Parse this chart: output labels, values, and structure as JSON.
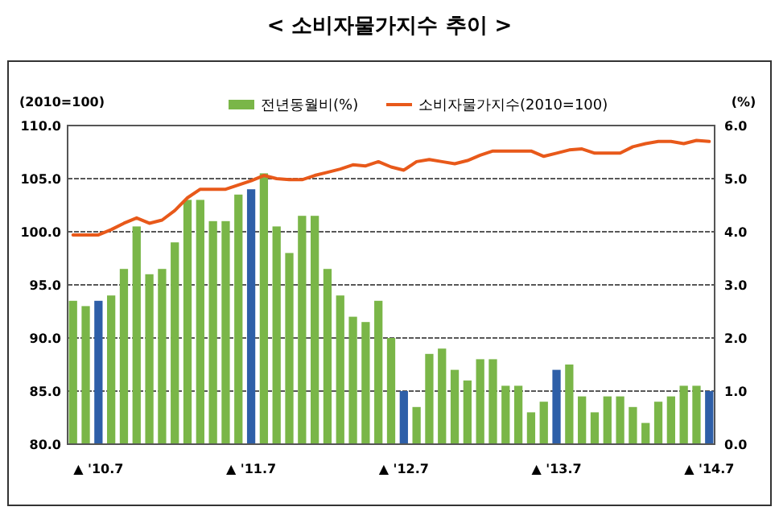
{
  "chart_data": {
    "type": "bar",
    "title": "< 소비자물가지수 추이 >",
    "ylabel": "(2010=100)",
    "y2label": "(%)",
    "categories": [
      null,
      null,
      "▲ '10.7",
      null,
      null,
      null,
      null,
      null,
      null,
      null,
      null,
      null,
      null,
      null,
      "▲ '11.7",
      null,
      null,
      null,
      null,
      null,
      null,
      null,
      null,
      null,
      null,
      null,
      "▲ '12.7",
      null,
      null,
      null,
      null,
      null,
      null,
      null,
      null,
      null,
      null,
      null,
      "▲ '13.7",
      null,
      null,
      null,
      null,
      null,
      null,
      null,
      null,
      null,
      null,
      null,
      "▲ '14.7"
    ],
    "series": [
      {
        "name": "전년동월비(%)",
        "axis": "y2",
        "color": "#7ab648",
        "colors": [
          "#7ab648",
          "#7ab648",
          "#2e5fa8",
          "#7ab648",
          "#7ab648",
          "#7ab648",
          "#7ab648",
          "#7ab648",
          "#7ab648",
          "#7ab648",
          "#7ab648",
          "#7ab648",
          "#7ab648",
          "#7ab648",
          "#2e5fa8",
          "#7ab648",
          "#7ab648",
          "#7ab648",
          "#7ab648",
          "#7ab648",
          "#7ab648",
          "#7ab648",
          "#7ab648",
          "#7ab648",
          "#7ab648",
          "#7ab648",
          "#2e5fa8",
          "#7ab648",
          "#7ab648",
          "#7ab648",
          "#7ab648",
          "#7ab648",
          "#7ab648",
          "#7ab648",
          "#7ab648",
          "#7ab648",
          "#7ab648",
          "#7ab648",
          "#2e5fa8",
          "#7ab648",
          "#7ab648",
          "#7ab648",
          "#7ab648",
          "#7ab648",
          "#7ab648",
          "#7ab648",
          "#7ab648",
          "#7ab648",
          "#7ab648",
          "#7ab648",
          "#2e5fa8"
        ],
        "values": [
          2.7,
          2.6,
          2.7,
          2.8,
          3.3,
          4.1,
          3.2,
          3.3,
          3.8,
          4.6,
          4.6,
          4.2,
          4.2,
          4.7,
          4.8,
          5.1,
          4.1,
          3.6,
          4.3,
          4.3,
          3.3,
          2.8,
          2.4,
          2.3,
          2.7,
          2.0,
          1.0,
          0.7,
          1.7,
          1.8,
          1.4,
          1.2,
          1.6,
          1.6,
          1.1,
          1.1,
          0.6,
          0.8,
          1.4,
          1.5,
          0.9,
          0.6,
          0.9,
          0.9,
          0.7,
          0.4,
          0.8,
          0.9,
          1.1,
          1.1,
          1.0
        ]
      },
      {
        "name": "소비자물가지수(2010=100)",
        "type": "line",
        "axis": "y",
        "color": "#e8591a",
        "values": [
          99.7,
          99.7,
          99.7,
          100.2,
          100.8,
          101.3,
          100.8,
          101.1,
          102.0,
          103.2,
          104.0,
          104.0,
          104.0,
          104.4,
          104.8,
          105.3,
          105.0,
          104.9,
          104.9,
          105.3,
          105.6,
          105.9,
          106.3,
          106.2,
          106.6,
          106.1,
          105.8,
          106.6,
          106.8,
          106.6,
          106.4,
          106.7,
          107.2,
          107.6,
          107.6,
          107.6,
          107.6,
          107.1,
          107.4,
          107.7,
          107.8,
          107.4,
          107.4,
          107.4,
          108.0,
          108.3,
          108.5,
          108.5,
          108.3,
          108.6,
          108.5
        ]
      }
    ],
    "ylim": [
      80,
      110
    ],
    "yticks": [
      {
        "value": 80,
        "label": "80.0"
      },
      {
        "value": 85,
        "label": "85.0"
      },
      {
        "value": 90,
        "label": "90.0"
      },
      {
        "value": 95,
        "label": "95.0"
      },
      {
        "value": 100,
        "label": "100.0"
      },
      {
        "value": 105,
        "label": "105.0"
      },
      {
        "value": 110,
        "label": "110.0"
      }
    ],
    "y2lim": [
      0,
      6
    ],
    "y2ticks": [
      {
        "value": 0,
        "label": "0.0"
      },
      {
        "value": 1,
        "label": "1.0"
      },
      {
        "value": 2,
        "label": "2.0"
      },
      {
        "value": 3,
        "label": "3.0"
      },
      {
        "value": 4,
        "label": "4.0"
      },
      {
        "value": 5,
        "label": "5.0"
      },
      {
        "value": 6,
        "label": "6.0"
      }
    ],
    "grid": "y",
    "legend": "top",
    "marker": "none",
    "line_style": "solid"
  }
}
